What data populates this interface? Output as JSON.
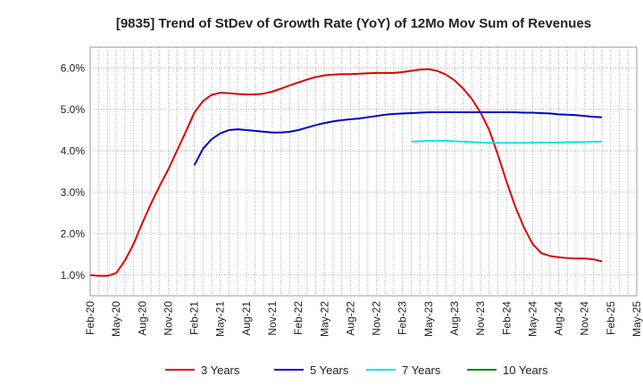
{
  "chart_data": {
    "type": "line",
    "title": "[9835]  Trend of StDev of Growth Rate (YoY) of 12Mo Mov Sum of Revenues",
    "xlabel": "",
    "ylabel": "",
    "ylim": [
      0.5,
      6.5
    ],
    "y_ticks": [
      1.0,
      2.0,
      3.0,
      4.0,
      5.0,
      6.0
    ],
    "y_tick_labels": [
      "1.0%",
      "2.0%",
      "3.0%",
      "4.0%",
      "5.0%",
      "6.0%"
    ],
    "x_tick_labels": [
      "Feb-20",
      "May-20",
      "Aug-20",
      "Nov-20",
      "Feb-21",
      "May-21",
      "Aug-21",
      "Nov-21",
      "Feb-22",
      "May-22",
      "Aug-22",
      "Nov-22",
      "Feb-23",
      "May-23",
      "Aug-23",
      "Nov-23",
      "Feb-24",
      "May-24",
      "Aug-24",
      "Nov-24",
      "Feb-25",
      "May-25"
    ],
    "x_start_index": 0,
    "x_end_index": 63,
    "grid": true,
    "legend_position": "bottom",
    "series": [
      {
        "name": "3 Years",
        "color": "#dd0000",
        "start": 0,
        "values": [
          1.0,
          0.98,
          0.98,
          1.05,
          1.35,
          1.75,
          2.25,
          2.72,
          3.15,
          3.55,
          4.0,
          4.45,
          4.92,
          5.2,
          5.35,
          5.4,
          5.39,
          5.37,
          5.36,
          5.36,
          5.38,
          5.43,
          5.5,
          5.58,
          5.65,
          5.72,
          5.78,
          5.82,
          5.84,
          5.85,
          5.85,
          5.86,
          5.87,
          5.88,
          5.88,
          5.88,
          5.9,
          5.93,
          5.96,
          5.97,
          5.93,
          5.84,
          5.7,
          5.5,
          5.25,
          4.92,
          4.5,
          3.9,
          3.25,
          2.65,
          2.15,
          1.75,
          1.53,
          1.46,
          1.43,
          1.41,
          1.4,
          1.4,
          1.38,
          1.33
        ]
      },
      {
        "name": "5 Years",
        "color": "#0000cc",
        "start": 12,
        "values": [
          3.65,
          4.05,
          4.28,
          4.42,
          4.5,
          4.52,
          4.5,
          4.48,
          4.46,
          4.44,
          4.44,
          4.46,
          4.5,
          4.56,
          4.62,
          4.67,
          4.71,
          4.74,
          4.76,
          4.78,
          4.81,
          4.84,
          4.87,
          4.89,
          4.9,
          4.91,
          4.92,
          4.93,
          4.93,
          4.93,
          4.93,
          4.93,
          4.93,
          4.93,
          4.93,
          4.93,
          4.93,
          4.93,
          4.92,
          4.92,
          4.91,
          4.9,
          4.88,
          4.87,
          4.86,
          4.84,
          4.82,
          4.81
        ]
      },
      {
        "name": "7 Years",
        "color": "#00e5e5",
        "start": 37,
        "values": [
          4.22,
          4.23,
          4.24,
          4.24,
          4.24,
          4.23,
          4.22,
          4.21,
          4.2,
          4.19,
          4.19,
          4.19,
          4.19,
          4.19,
          4.2,
          4.2,
          4.2,
          4.2,
          4.21,
          4.21,
          4.21,
          4.22,
          4.22
        ]
      },
      {
        "name": "10 Years",
        "color": "#008800",
        "start": 0,
        "values": []
      }
    ]
  }
}
